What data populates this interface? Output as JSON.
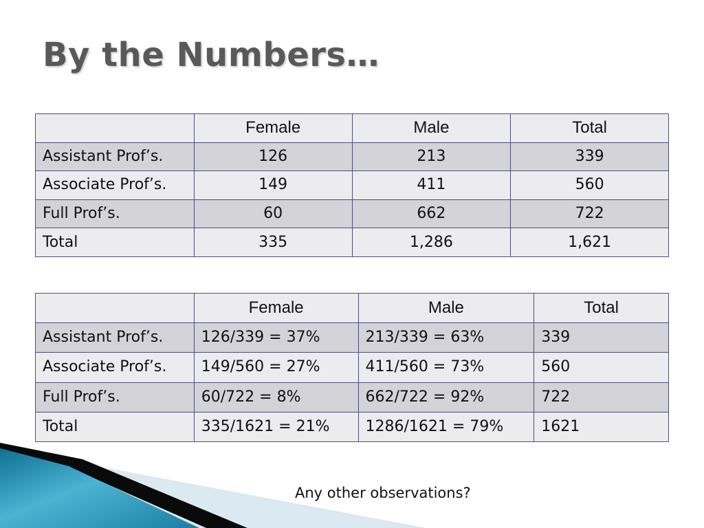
{
  "slide": {
    "title": "By the Numbers…",
    "footer_question": "Any other observations?"
  },
  "table_counts": {
    "headers": [
      "",
      "Female",
      "Male",
      "Total"
    ],
    "rows": [
      [
        "Assistant Prof’s.",
        "126",
        "213",
        "339"
      ],
      [
        "Associate Prof’s.",
        "149",
        "411",
        "560"
      ],
      [
        "Full Prof’s.",
        "60",
        "662",
        "722"
      ],
      [
        "Total",
        "335",
        "1,286",
        "1,621"
      ]
    ]
  },
  "table_percent": {
    "headers": [
      "",
      "Female",
      "Male",
      "Total"
    ],
    "rows": [
      [
        "Assistant Prof’s.",
        "126/339 = 37%",
        "213/339 = 63%",
        "339"
      ],
      [
        "Associate Prof’s.",
        "149/560 = 27%",
        "411/560 = 73%",
        "560"
      ],
      [
        "Full Prof’s.",
        "60/722 = 8%",
        "662/722 = 92%",
        "722"
      ],
      [
        "Total",
        "335/1621 = 21%",
        "1286/1621 = 79%",
        "1621"
      ]
    ]
  },
  "colors": {
    "title": "#595959",
    "row_light": "#ececee",
    "row_dark": "#d3d3d8",
    "border": "#4b4b80",
    "accent_blue": "#2a93b6"
  }
}
